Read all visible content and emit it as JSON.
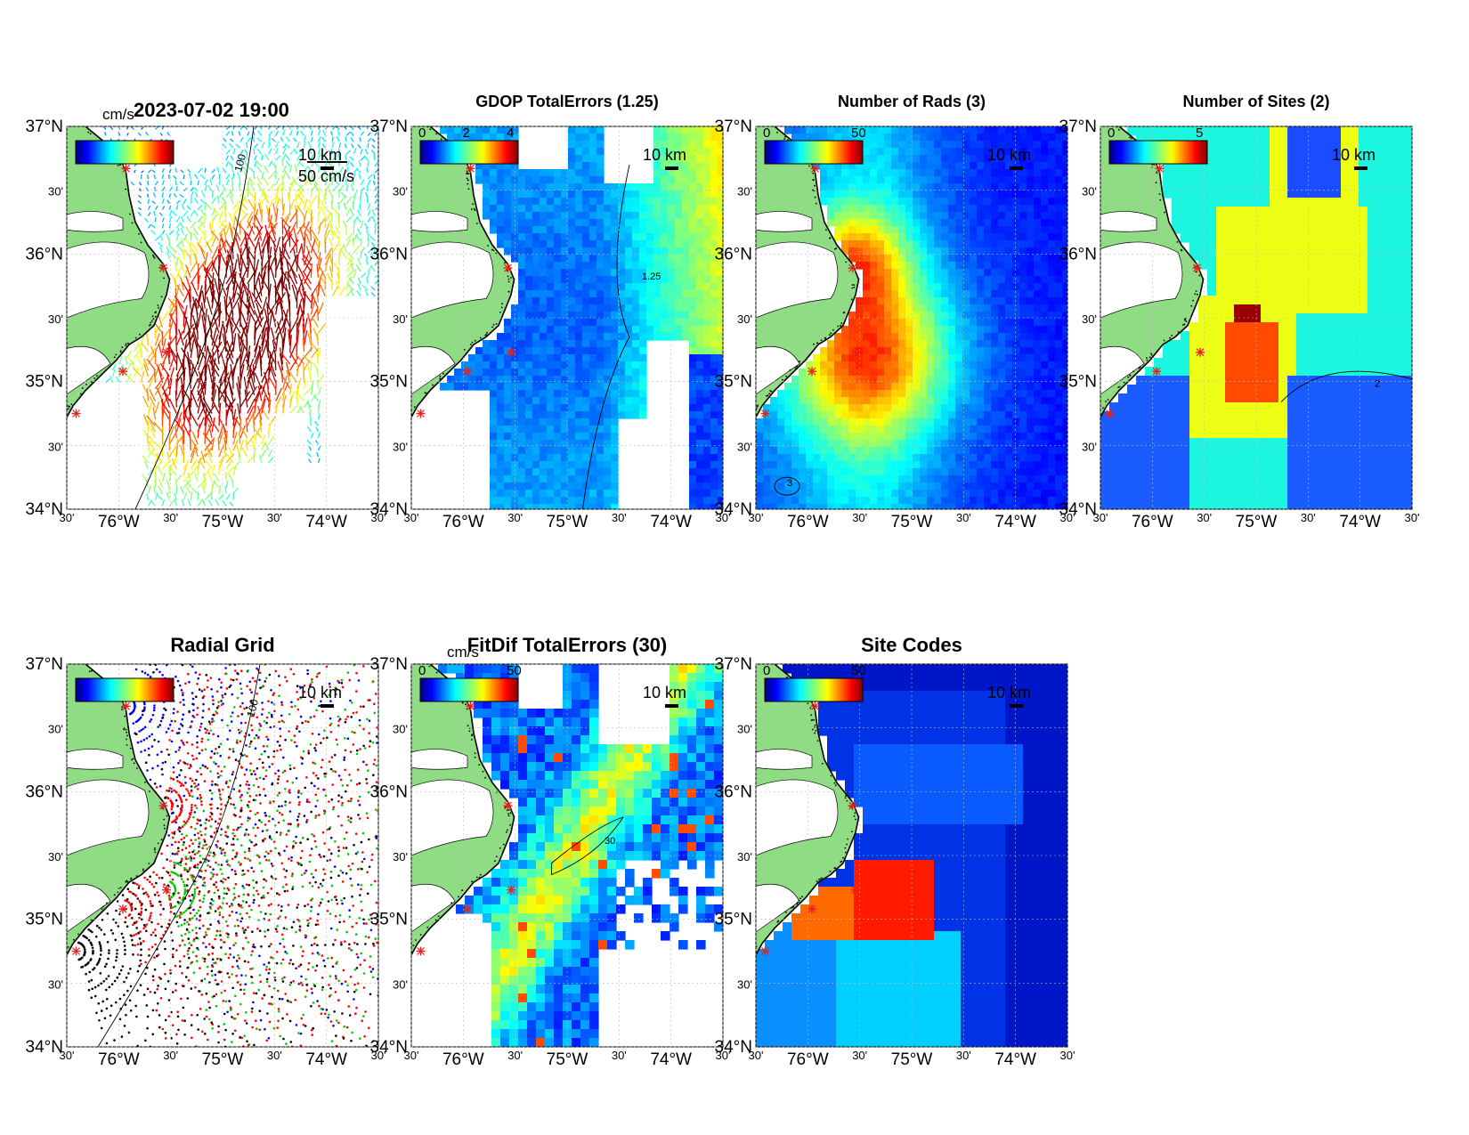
{
  "figure": {
    "timestamp": "2023-07-02 19:00",
    "panels": [
      {
        "id": "vectors",
        "title": "",
        "cbar_unit": "cm/s",
        "cbar_ticks": [],
        "scale_label": "50 cm/s",
        "km_label": "10 km",
        "contour_label": "100"
      },
      {
        "id": "gdop",
        "title": "GDOP TotalErrors (1.25)",
        "cbar_unit": "",
        "cbar_ticks": [
          "0",
          "2",
          "4"
        ],
        "km_label": "10 km",
        "contour_label": "1.25"
      },
      {
        "id": "nrads",
        "title": "Number of Rads (3)",
        "cbar_unit": "",
        "cbar_ticks": [
          "0",
          "50"
        ],
        "km_label": "10 km",
        "contour_label": "3"
      },
      {
        "id": "nsites",
        "title": "Number of Sites (2)",
        "cbar_unit": "",
        "cbar_ticks": [
          "0",
          "5"
        ],
        "km_label": "10 km",
        "contour_label": "2"
      },
      {
        "id": "radgrid",
        "title": "Radial Grid",
        "cbar_unit": "",
        "cbar_ticks": [],
        "km_label": "10 km",
        "contour_label": "100"
      },
      {
        "id": "fitdif",
        "title": "FitDif TotalErrors (30)",
        "cbar_unit": "cm/s",
        "cbar_ticks": [
          "0",
          "50"
        ],
        "km_label": "10 km",
        "contour_label": "30"
      },
      {
        "id": "sitecodes",
        "title": "Site Codes",
        "cbar_unit": "",
        "cbar_ticks": [
          "0",
          "50"
        ],
        "km_label": "10 km",
        "contour_label": ""
      }
    ],
    "lat_ticks": [
      "37°N",
      "30'",
      "36°N",
      "30'",
      "35°N",
      "30'",
      "34°N"
    ],
    "lon_ticks": [
      "30'",
      "76°W",
      "30'",
      "75°W",
      "30'",
      "74°W",
      "30'"
    ]
  },
  "colors": {
    "land": "#8fdc85",
    "ocean": "#ffffff",
    "site_marker": "#e8221e",
    "coast": "#000000",
    "contour": "#000000"
  }
}
